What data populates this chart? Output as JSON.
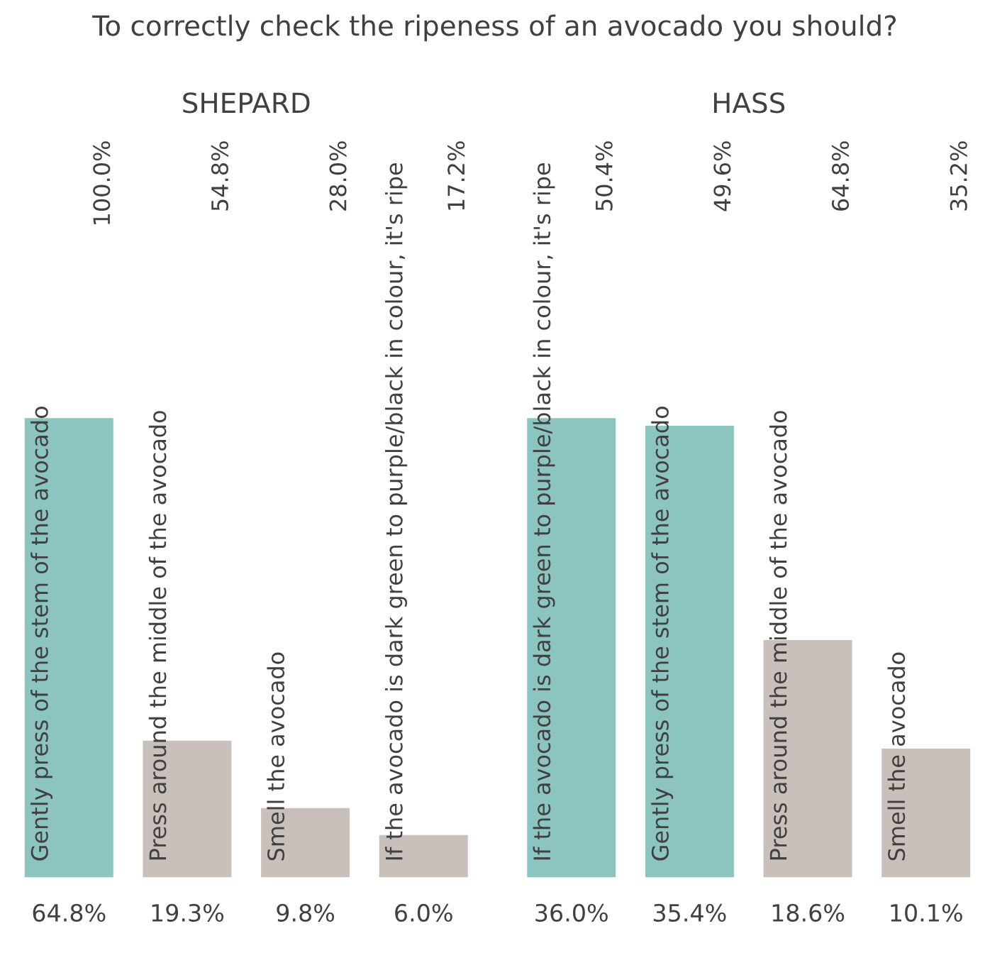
{
  "chart_data": [
    {
      "type": "bar",
      "title": "To correctly check the ripeness of an avocado you should?",
      "subtitle": "SHEPARD",
      "categories": [
        "Gently press of the stem of the avocado",
        "Press around the middle of the avocado",
        "Smell the avocado",
        "If the avocado is dark green to purple/black in colour, it's ripe"
      ],
      "values": [
        64.8,
        19.3,
        9.8,
        6.0
      ],
      "value_labels": [
        "64.8%",
        "19.3%",
        "9.8%",
        "6.0%"
      ],
      "colors": [
        "#8cc5bf",
        "#c9c0bc",
        "#c9c0bc",
        "#c9c0bc"
      ],
      "annotations": [
        "100.0%",
        "54.8%",
        "28.0%",
        "17.2%"
      ]
    },
    {
      "type": "bar",
      "subtitle": "HASS",
      "categories": [
        "If the avocado is dark green to purple/black in colour, it's ripe",
        "Gently press of the stem of the avocado",
        "Press around the middle of the avocado",
        "Smell the avocado"
      ],
      "values": [
        36.0,
        35.4,
        18.6,
        10.1
      ],
      "value_labels": [
        "36.0%",
        "35.4%",
        "18.6%",
        "10.1%"
      ],
      "colors": [
        "#8cc5bf",
        "#8cc5bf",
        "#c9c0bc",
        "#c9c0bc"
      ],
      "annotations": [
        "50.4%",
        "49.6%",
        "64.8%",
        "35.2%"
      ]
    }
  ]
}
